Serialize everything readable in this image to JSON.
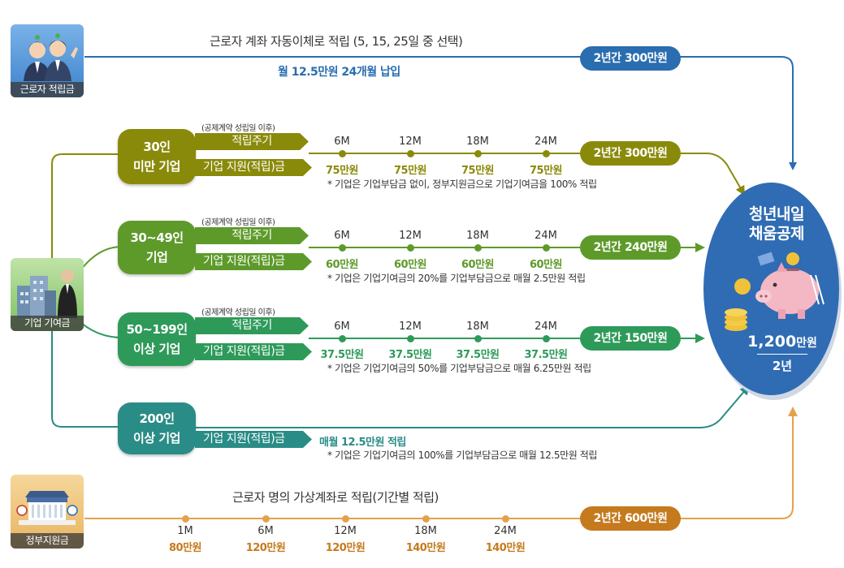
{
  "colors": {
    "worker": "#2a6db0",
    "olive": "#8a8a0a",
    "green": "#5e9a2a",
    "emerald": "#2e9a5a",
    "teal": "#2a8c86",
    "gov": "#e3a24a",
    "govDark": "#c57a1e",
    "circle": "#2f6cb3"
  },
  "icons": {
    "worker": {
      "name": "workers-icon",
      "caption": "근로자 적립금"
    },
    "company": {
      "name": "company-building-icon",
      "caption": "기업 기여금"
    },
    "gov": {
      "name": "government-building-icon",
      "caption": "정부지원금"
    }
  },
  "worker_row": {
    "title": "근로자 계좌 자동이체로 적립 (5, 15, 25일 중 선택)",
    "subtitle": "월 12.5만원 24개월 납입",
    "total": "2년간 300만원"
  },
  "tiers": [
    {
      "label1": "30인",
      "label2": "미만 기업",
      "pre_note": "(공제계약 성립일 이후)",
      "cycle_label": "적립주기",
      "support_label": "기업 지원(적립)금",
      "ticks": [
        "6M",
        "12M",
        "18M",
        "24M"
      ],
      "amounts": [
        "75만원",
        "75만원",
        "75만원",
        "75만원"
      ],
      "note": "* 기업은 기업부담금 없이, 정부지원금으로 기업기여금을 100% 적립",
      "total": "2년간 300만원"
    },
    {
      "label1": "30~49인",
      "label2": "기업",
      "pre_note": "(공제계약 성립일 이후)",
      "cycle_label": "적립주기",
      "support_label": "기업 지원(적립)금",
      "ticks": [
        "6M",
        "12M",
        "18M",
        "24M"
      ],
      "amounts": [
        "60만원",
        "60만원",
        "60만원",
        "60만원"
      ],
      "note": "* 기업은 기업기여금의 20%를 기업부담금으로 매월 2.5만원 적립",
      "total": "2년간 240만원"
    },
    {
      "label1": "50~199인",
      "label2": "이상 기업",
      "pre_note": "(공제계약 성립일 이후)",
      "cycle_label": "적립주기",
      "support_label": "기업 지원(적립)금",
      "ticks": [
        "6M",
        "12M",
        "18M",
        "24M"
      ],
      "amounts": [
        "37.5만원",
        "37.5만원",
        "37.5만원",
        "37.5만원"
      ],
      "note": "* 기업은 기업기여금의 50%를 기업부담금으로 매월 6.25만원 적립",
      "total": "2년간 150만원"
    },
    {
      "label1": "200인",
      "label2": "이상 기업",
      "support_label": "기업 지원(적립)금",
      "monthly": "매월 12.5만원 적립",
      "note": "* 기업은 기업기여금의 100%를 기업부담금으로 매월 12.5만원 적립"
    }
  ],
  "gov_row": {
    "title": "근로자 명의 가상계좌로 적립(기간별 적립)",
    "ticks": [
      "1M",
      "6M",
      "12M",
      "18M",
      "24M"
    ],
    "amounts": [
      "80만원",
      "120만원",
      "120만원",
      "140만원",
      "140만원"
    ],
    "total": "2년간 600만원"
  },
  "result": {
    "title1": "청년내일",
    "title2": "채움공제",
    "piggy_icon": "piggy-bank-icon",
    "amount_num": "1,200",
    "amount_unit": "만원",
    "period": "2년"
  }
}
